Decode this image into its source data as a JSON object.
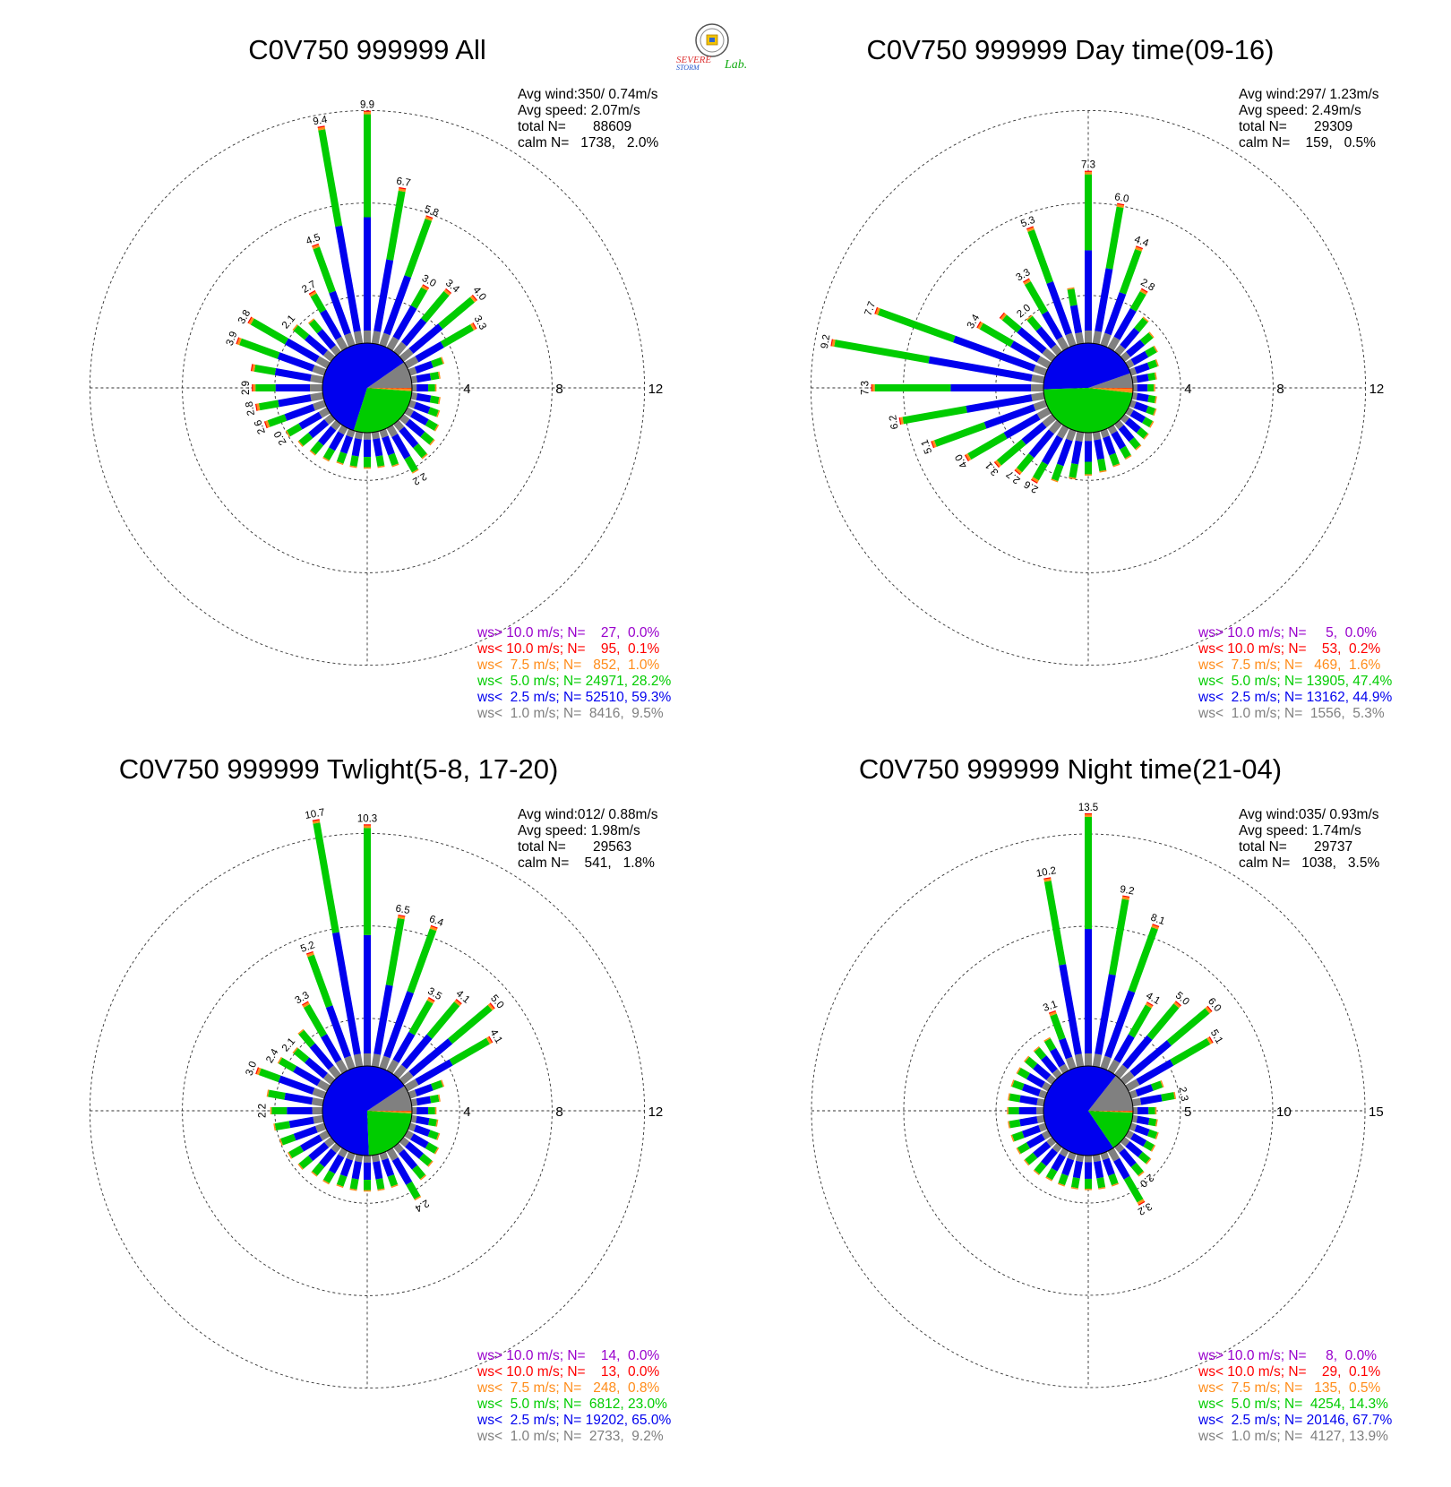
{
  "logo": {
    "text_a": "SEVERE",
    "text_b": "STORM",
    "text_c": "Lab."
  },
  "colors": {
    "gt10": "#9900cc",
    "lt10": "#ff0000",
    "lt75": "#ff8c1a",
    "lt50": "#00cc00",
    "lt25": "#0000ee",
    "lt10ms": "#808080"
  },
  "panels": [
    {
      "title": "C0V750 999999 All",
      "avg_wind": "Avg wind:350/ 0.74m/s",
      "avg_speed": "Avg speed: 2.07m/s",
      "total": "total N=       88609",
      "calm": "calm N=   1738,   2.0%",
      "legend": [
        {
          "label": "ws> 10.0 m/s; N=    27,  0.0%",
          "color": "#9900cc"
        },
        {
          "label": "ws< 10.0 m/s; N=    95,  0.1%",
          "color": "#ff0000"
        },
        {
          "label": "ws<  7.5 m/s; N=   852,  1.0%",
          "color": "#ff8c1a"
        },
        {
          "label": "ws<  5.0 m/s; N= 24971, 28.2%",
          "color": "#00cc00"
        },
        {
          "label": "ws<  2.5 m/s; N= 52510, 59.3%",
          "color": "#0000ee"
        },
        {
          "label": "ws<  1.0 m/s; N=  8416,  9.5%",
          "color": "#808080"
        }
      ]
    },
    {
      "title": "C0V750 999999 Day time(09-16)",
      "avg_wind": "Avg wind:297/ 1.23m/s",
      "avg_speed": "Avg speed: 2.49m/s",
      "total": "total N=       29309",
      "calm": "calm N=    159,   0.5%",
      "legend": [
        {
          "label": "ws> 10.0 m/s; N=     5,  0.0%",
          "color": "#9900cc"
        },
        {
          "label": "ws< 10.0 m/s; N=    53,  0.2%",
          "color": "#ff0000"
        },
        {
          "label": "ws<  7.5 m/s; N=   469,  1.6%",
          "color": "#ff8c1a"
        },
        {
          "label": "ws<  5.0 m/s; N= 13905, 47.4%",
          "color": "#00cc00"
        },
        {
          "label": "ws<  2.5 m/s; N= 13162, 44.9%",
          "color": "#0000ee"
        },
        {
          "label": "ws<  1.0 m/s; N=  1556,  5.3%",
          "color": "#808080"
        }
      ]
    },
    {
      "title": "C0V750 999999 Twlight(5-8, 17-20)",
      "avg_wind": "Avg wind:012/ 0.88m/s",
      "avg_speed": "Avg speed: 1.98m/s",
      "total": "total N=       29563",
      "calm": "calm N=    541,   1.8%",
      "legend": [
        {
          "label": "ws> 10.0 m/s; N=    14,  0.0%",
          "color": "#9900cc"
        },
        {
          "label": "ws< 10.0 m/s; N=    13,  0.0%",
          "color": "#ff0000"
        },
        {
          "label": "ws<  7.5 m/s; N=   248,  0.8%",
          "color": "#ff8c1a"
        },
        {
          "label": "ws<  5.0 m/s; N=  6812, 23.0%",
          "color": "#00cc00"
        },
        {
          "label": "ws<  2.5 m/s; N= 19202, 65.0%",
          "color": "#0000ee"
        },
        {
          "label": "ws<  1.0 m/s; N=  2733,  9.2%",
          "color": "#808080"
        }
      ]
    },
    {
      "title": "C0V750 999999 Night time(21-04)",
      "avg_wind": "Avg wind:035/ 0.93m/s",
      "avg_speed": "Avg speed: 1.74m/s",
      "total": "total N=       29737",
      "calm": "calm N=   1038,   3.5%",
      "legend": [
        {
          "label": "ws> 10.0 m/s; N=     8,  0.0%",
          "color": "#9900cc"
        },
        {
          "label": "ws< 10.0 m/s; N=    29,  0.1%",
          "color": "#ff0000"
        },
        {
          "label": "ws<  7.5 m/s; N=   135,  0.5%",
          "color": "#ff8c1a"
        },
        {
          "label": "ws<  5.0 m/s; N=  4254, 14.3%",
          "color": "#00cc00"
        },
        {
          "label": "ws<  2.5 m/s; N= 20146, 67.7%",
          "color": "#0000ee"
        },
        {
          "label": "ws<  1.0 m/s; N=  4127, 13.9%",
          "color": "#808080"
        }
      ]
    }
  ],
  "chart_data": [
    {
      "type": "wind-rose",
      "title": "C0V750 999999 All",
      "rlim": [
        0,
        12
      ],
      "ring_ticks": [
        "4",
        "8",
        "12"
      ],
      "directions_deg": [
        0,
        10,
        20,
        30,
        40,
        50,
        60,
        70,
        80,
        90,
        100,
        110,
        120,
        130,
        140,
        150,
        160,
        170,
        180,
        190,
        200,
        210,
        220,
        230,
        240,
        250,
        260,
        270,
        280,
        290,
        300,
        310,
        320,
        330,
        340,
        350
      ],
      "percent": [
        9.9,
        6.7,
        5.8,
        3.0,
        3.4,
        4.0,
        3.3,
        1.5,
        1.2,
        1.0,
        1.2,
        1.3,
        1.5,
        1.7,
        1.9,
        2.2,
        1.6,
        1.5,
        1.5,
        1.5,
        1.5,
        1.6,
        1.7,
        1.8,
        2.0,
        2.6,
        2.8,
        2.9,
        3.0,
        3.9,
        3.8,
        2.1,
        1.8,
        2.7,
        4.5,
        9.4
      ],
      "labels": [
        "9.9",
        "6.7",
        "5.8",
        "3.0",
        "3.4",
        "4.0",
        "3.3",
        "",
        "",
        "",
        "",
        "",
        "",
        "",
        "",
        "2.2",
        "",
        "",
        "",
        "",
        "",
        "",
        "",
        "",
        "2.0",
        "2.6",
        "2.8",
        "2.9",
        "",
        "3.9",
        "3.8",
        "2.1",
        "",
        "2.7",
        "4.5",
        "9.4"
      ],
      "pie": {
        "lt10": 9.5,
        "lt25": 59.3,
        "lt50": 28.2,
        "lt75": 1.0,
        "lt10ms": 0.1,
        "gt10": 0.0
      }
    },
    {
      "type": "wind-rose",
      "title": "C0V750 999999 Day time(09-16)",
      "rlim": [
        0,
        12
      ],
      "ring_ticks": [
        "4",
        "8",
        "12"
      ],
      "directions_deg": [
        0,
        10,
        20,
        30,
        40,
        50,
        60,
        70,
        80,
        90,
        100,
        110,
        120,
        130,
        140,
        150,
        160,
        170,
        180,
        190,
        200,
        210,
        220,
        230,
        240,
        250,
        260,
        270,
        280,
        290,
        300,
        310,
        320,
        330,
        340,
        350
      ],
      "percent": [
        7.3,
        6.0,
        4.4,
        2.8,
        1.9,
        1.6,
        1.4,
        1.2,
        1.0,
        0.9,
        1.0,
        1.1,
        1.2,
        1.3,
        1.4,
        1.5,
        1.6,
        1.7,
        1.8,
        2.0,
        2.3,
        2.6,
        2.7,
        3.1,
        4.0,
        5.1,
        6.2,
        7.3,
        9.2,
        7.7,
        3.4,
        2.8,
        2.0,
        3.3,
        5.3,
        2.4
      ],
      "labels": [
        "7.3",
        "6.0",
        "4.4",
        "2.8",
        "",
        "",
        "",
        "",
        "",
        "",
        "",
        "",
        "",
        "",
        "",
        "",
        "",
        "",
        "",
        "",
        "",
        "2.6",
        "2.7",
        "3.1",
        "4.0",
        "5.1",
        "6.2",
        "7.3",
        "9.2",
        "7.7",
        "3.4",
        "",
        "2.0",
        "3.3",
        "5.3",
        ""
      ],
      "pie": {
        "lt10": 5.3,
        "lt25": 44.9,
        "lt50": 47.4,
        "lt75": 1.6,
        "lt10ms": 0.2,
        "gt10": 0.0
      }
    },
    {
      "type": "wind-rose",
      "title": "C0V750 999999 Twlight(5-8, 17-20)",
      "rlim": [
        0,
        12
      ],
      "ring_ticks": [
        "4",
        "8",
        "12"
      ],
      "directions_deg": [
        0,
        10,
        20,
        30,
        40,
        50,
        60,
        70,
        80,
        90,
        100,
        110,
        120,
        130,
        140,
        150,
        160,
        170,
        180,
        190,
        200,
        210,
        220,
        230,
        240,
        250,
        260,
        270,
        280,
        290,
        300,
        310,
        320,
        330,
        340,
        350
      ],
      "percent": [
        10.3,
        6.5,
        6.4,
        3.5,
        4.1,
        5.0,
        4.1,
        1.5,
        1.2,
        1.0,
        1.1,
        1.3,
        1.5,
        1.6,
        1.8,
        2.4,
        1.5,
        1.5,
        1.5,
        1.5,
        1.5,
        1.6,
        1.6,
        1.8,
        1.9,
        2.0,
        2.1,
        2.2,
        2.4,
        3.0,
        2.4,
        2.1,
        2.5,
        3.3,
        5.2,
        10.7
      ],
      "labels": [
        "10.3",
        "6.5",
        "6.4",
        "3.5",
        "4.1",
        "5.0",
        "4.1",
        "",
        "",
        "",
        "",
        "",
        "",
        "",
        "",
        "2.4",
        "",
        "",
        "",
        "",
        "",
        "",
        "",
        "",
        "",
        "",
        "",
        "2.2",
        "",
        "3.0",
        "2.4",
        "2.1",
        "",
        "3.3",
        "5.2",
        "10.7"
      ],
      "pie": {
        "lt10": 9.2,
        "lt25": 65.0,
        "lt50": 23.0,
        "lt75": 0.8,
        "lt10ms": 0.0,
        "gt10": 0.0
      }
    },
    {
      "type": "wind-rose",
      "title": "C0V750 999999 Night time(21-04)",
      "rlim": [
        0,
        15
      ],
      "ring_ticks": [
        "5",
        "10",
        "15"
      ],
      "directions_deg": [
        0,
        10,
        20,
        30,
        40,
        50,
        60,
        70,
        80,
        90,
        100,
        110,
        120,
        130,
        140,
        150,
        160,
        170,
        180,
        190,
        200,
        210,
        220,
        230,
        240,
        250,
        260,
        270,
        280,
        290,
        300,
        310,
        320,
        330,
        340,
        350
      ],
      "percent": [
        13.5,
        9.2,
        8.1,
        4.1,
        5.0,
        6.0,
        5.1,
        1.8,
        2.3,
        1.2,
        1.3,
        1.5,
        1.6,
        1.8,
        2.0,
        3.2,
        1.8,
        1.8,
        1.8,
        1.8,
        1.8,
        1.8,
        1.9,
        1.9,
        1.9,
        1.9,
        1.9,
        1.9,
        1.9,
        1.9,
        1.9,
        1.9,
        1.9,
        2.0,
        3.1,
        10.2
      ],
      "labels": [
        "13.5",
        "9.2",
        "8.1",
        "4.1",
        "5.0",
        "6.0",
        "5.1",
        "",
        "2.3",
        "",
        "",
        "",
        "",
        "",
        "2.0",
        "3.2",
        "",
        "",
        "",
        "",
        "",
        "",
        "",
        "",
        "",
        "",
        "",
        "",
        "",
        "",
        "",
        "",
        "",
        "",
        "3.1",
        "10.2"
      ],
      "pie": {
        "lt10": 13.9,
        "lt25": 67.7,
        "lt50": 14.3,
        "lt75": 0.5,
        "lt10ms": 0.1,
        "gt10": 0.0
      }
    }
  ]
}
